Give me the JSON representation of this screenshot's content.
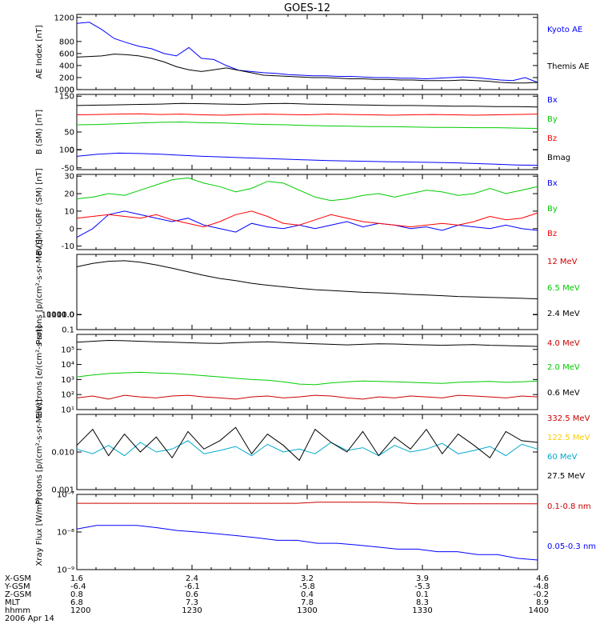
{
  "title": "GOES-12",
  "footer": {
    "rows": [
      {
        "label": "X-GSM",
        "values": [
          "1.6",
          "2.4",
          "3.2",
          "3.9",
          "4.6"
        ]
      },
      {
        "label": "Y-GSM",
        "values": [
          "-6.4",
          "-6.1",
          "-5.8",
          "-5.3",
          "-4.8"
        ]
      },
      {
        "label": "Z-GSM",
        "values": [
          "0.8",
          "0.6",
          "0.4",
          "0.1",
          "-0.2"
        ]
      },
      {
        "label": "MLT",
        "values": [
          "6.8",
          "7.3",
          "7.8",
          "8.3",
          "8.9"
        ]
      },
      {
        "label": "hhmm",
        "values": [
          "1200",
          "1230",
          "1300",
          "1330",
          "1400"
        ]
      }
    ],
    "date": "2006 Apr 14"
  },
  "chart_data": [
    {
      "type": "line",
      "ylabel": "AE Index [nT]",
      "yscale": "linear",
      "ylim": [
        0,
        1250
      ],
      "yticks": [
        "0",
        "200",
        "400",
        "600",
        "800",
        "1000",
        "1200"
      ],
      "x_range": [
        "1200",
        "1400"
      ],
      "series": [
        {
          "name": "Kyoto AE",
          "color": "#0000ff",
          "values": [
            1100,
            1120,
            1000,
            850,
            780,
            720,
            680,
            600,
            560,
            700,
            520,
            500,
            400,
            320,
            300,
            280,
            270,
            250,
            240,
            230,
            230,
            220,
            220,
            210,
            200,
            200,
            190,
            190,
            180,
            190,
            200,
            210,
            200,
            180,
            160,
            150,
            200,
            120
          ]
        },
        {
          "name": "Themis AE",
          "color": "#000000",
          "values": [
            540,
            550,
            560,
            590,
            580,
            560,
            520,
            460,
            380,
            330,
            300,
            330,
            360,
            320,
            280,
            240,
            230,
            220,
            210,
            200,
            200,
            190,
            180,
            180,
            170,
            170,
            160,
            160,
            150,
            150,
            150,
            160,
            150,
            140,
            120,
            110,
            110,
            120
          ]
        }
      ]
    },
    {
      "type": "line",
      "ylabel": "B (SM) [nT]",
      "yscale": "linear",
      "ylim": [
        -55,
        155
      ],
      "yticks": [
        "-50",
        "0",
        "50",
        "100",
        "150"
      ],
      "x_range": [
        "1200",
        "1400"
      ],
      "series": [
        {
          "name": "Bx",
          "color": "#0000ff",
          "values": [
            -18,
            -12,
            -9,
            -10,
            -12,
            -15,
            -18,
            -20,
            -22,
            -24,
            -26,
            -28,
            -30,
            -31,
            -32,
            -33,
            -34,
            -35,
            -36,
            -38,
            -40,
            -42,
            -43
          ]
        },
        {
          "name": "By",
          "color": "#00cc00",
          "values": [
            70,
            71,
            73,
            75,
            77,
            78,
            76,
            75,
            73,
            71,
            70,
            68,
            67,
            66,
            65,
            65,
            64,
            63,
            63,
            62,
            62,
            61,
            60
          ]
        },
        {
          "name": "Bz",
          "color": "#ff0000",
          "values": [
            98,
            99,
            100,
            101,
            99,
            100,
            98,
            97,
            99,
            100,
            99,
            98,
            100,
            99,
            98,
            97,
            98,
            99,
            98,
            97,
            98,
            99,
            100
          ]
        },
        {
          "name": "Bmag",
          "color": "#000000",
          "values": [
            124,
            125,
            126,
            127,
            128,
            130,
            129,
            128,
            127,
            129,
            130,
            128,
            127,
            126,
            125,
            124,
            124,
            123,
            122,
            122,
            121,
            121,
            120
          ]
        }
      ]
    },
    {
      "type": "line",
      "ylabel": "B (SM)-IGRF (SM) [nT]",
      "yscale": "linear",
      "ylim": [
        -12,
        31
      ],
      "yticks": [
        "-10",
        "0",
        "10",
        "20",
        "30"
      ],
      "x_range": [
        "1200",
        "1400"
      ],
      "series": [
        {
          "name": "Bx",
          "color": "#0000ff",
          "values": [
            -5,
            0,
            8,
            10,
            8,
            6,
            4,
            6,
            2,
            0,
            -2,
            3,
            1,
            0,
            2,
            0,
            2,
            4,
            1,
            3,
            2,
            0,
            1,
            -1,
            2,
            1,
            0,
            2,
            0,
            -1
          ]
        },
        {
          "name": "By",
          "color": "#00cc00",
          "values": [
            17,
            18,
            20,
            19,
            22,
            25,
            28,
            29,
            26,
            24,
            21,
            23,
            27,
            26,
            22,
            18,
            16,
            17,
            19,
            20,
            18,
            20,
            22,
            21,
            19,
            20,
            23,
            20,
            22,
            24
          ]
        },
        {
          "name": "Bz",
          "color": "#ff0000",
          "values": [
            6,
            7,
            8,
            7,
            6,
            8,
            5,
            3,
            1,
            4,
            8,
            10,
            7,
            3,
            2,
            5,
            8,
            6,
            4,
            3,
            2,
            1,
            2,
            3,
            2,
            4,
            7,
            5,
            6,
            9
          ]
        }
      ]
    },
    {
      "type": "line",
      "ylabel": "Protons [p/(cm²-s-sr-MeV)]",
      "yscale": "log",
      "ylim": [
        0.1,
        10000
      ],
      "yticks": [
        "0.1",
        "1.0",
        "10.0",
        "100.0",
        "1000.0",
        "10000.0"
      ],
      "x_range": [
        "1200",
        "1400"
      ],
      "series": [
        {
          "name": "12 MeV",
          "color": "#cc0000",
          "values": []
        },
        {
          "name": "6.5 MeV",
          "color": "#00cc00",
          "values": []
        },
        {
          "name": "2.4 MeV",
          "color": "#000000",
          "values": [
            1500,
            2500,
            3500,
            3800,
            3000,
            2000,
            1200,
            700,
            400,
            250,
            180,
            120,
            90,
            70,
            55,
            45,
            40,
            35,
            30,
            28,
            25,
            22,
            20,
            18,
            16,
            15,
            14,
            13,
            12,
            11
          ]
        }
      ]
    },
    {
      "type": "line",
      "ylabel": "Electrons [e/(cm²-s-sr)]",
      "yscale": "log",
      "ylim": [
        10,
        1000000
      ],
      "yticks": [
        "10¹",
        "10²",
        "10³",
        "10⁴",
        "10⁵"
      ],
      "x_range": [
        "1200",
        "1400"
      ],
      "series": [
        {
          "name": "4.0 MeV",
          "color": "#cc0000",
          "values": [
            60,
            80,
            50,
            90,
            70,
            60,
            80,
            90,
            70,
            60,
            50,
            70,
            80,
            60,
            70,
            90,
            80,
            60,
            50,
            70,
            60,
            80,
            70,
            60,
            90,
            80,
            70,
            60,
            80,
            70
          ]
        },
        {
          "name": "2.0 MeV",
          "color": "#00cc00",
          "values": [
            1500,
            2000,
            2500,
            2800,
            3000,
            2700,
            2500,
            2200,
            1800,
            1500,
            1200,
            1000,
            900,
            700,
            500,
            450,
            600,
            700,
            800,
            750,
            700,
            650,
            600,
            550,
            650,
            700,
            750,
            650,
            700,
            800
          ]
        },
        {
          "name": "0.6 MeV",
          "color": "#000000",
          "values": [
            300000,
            350000,
            400000,
            380000,
            350000,
            320000,
            300000,
            280000,
            260000,
            250000,
            280000,
            300000,
            320000,
            290000,
            260000,
            240000,
            220000,
            200000,
            220000,
            240000,
            230000,
            210000,
            200000,
            190000,
            200000,
            210000,
            190000,
            180000,
            170000,
            160000
          ]
        }
      ]
    },
    {
      "type": "line",
      "ylabel": "Protons [p/(cm²-s-sr-MeV)]",
      "yscale": "log",
      "ylim": [
        0.001,
        0.1
      ],
      "yticks": [
        "0.001",
        "0.010"
      ],
      "x_range": [
        "1200",
        "1400"
      ],
      "series": [
        {
          "name": "332.5 MeV",
          "color": "#cc0000",
          "values": []
        },
        {
          "name": "122.5 MeV",
          "color": "#ffcc00",
          "values": []
        },
        {
          "name": "60 MeV",
          "color": "#00aacc",
          "values": [
            0.012,
            0.009,
            0.015,
            0.008,
            0.018,
            0.01,
            0.012,
            0.02,
            0.009,
            0.011,
            0.014,
            0.008,
            0.016,
            0.01,
            0.012,
            0.009,
            0.018,
            0.011,
            0.013,
            0.008,
            0.015,
            0.01,
            0.012,
            0.017,
            0.009,
            0.011,
            0.014,
            0.008,
            0.016,
            0.012
          ]
        },
        {
          "name": "27.5 MeV",
          "color": "#000000",
          "values": [
            0.015,
            0.04,
            0.008,
            0.03,
            0.01,
            0.025,
            0.007,
            0.035,
            0.012,
            0.02,
            0.045,
            0.009,
            0.03,
            0.015,
            0.006,
            0.04,
            0.018,
            0.01,
            0.035,
            0.008,
            0.025,
            0.012,
            0.04,
            0.009,
            0.03,
            0.015,
            0.007,
            0.035,
            0.02,
            0.018
          ]
        }
      ]
    },
    {
      "type": "line",
      "ylabel": "Xray Flux [W/m²]",
      "yscale": "log",
      "ylim": [
        1e-09,
        1e-07
      ],
      "yticks": [
        "10⁻⁹",
        "10⁻⁸",
        "10⁻⁷"
      ],
      "x_range": [
        "1200",
        "1400"
      ],
      "series": [
        {
          "name": "0.1-0.8 nm",
          "color": "#cc0000",
          "values": [
            5.8e-08,
            5.8e-08,
            5.8e-08,
            5.8e-08,
            5.8e-08,
            5.8e-08,
            5.8e-08,
            5.8e-08,
            5.8e-08,
            5.8e-08,
            5.8e-08,
            5.8e-08,
            6.2e-08,
            6.2e-08,
            6.2e-08,
            6.2e-08,
            6e-08,
            5.6e-08,
            5.6e-08,
            5.6e-08,
            5.6e-08,
            5.6e-08,
            5.6e-08,
            5.6e-08
          ]
        },
        {
          "name": "0.05-0.3 nm",
          "color": "#0000ff",
          "values": [
            1.2e-08,
            1.5e-08,
            1.5e-08,
            1.5e-08,
            1.3e-08,
            1.1e-08,
            1e-08,
            9e-09,
            8e-09,
            7e-09,
            6e-09,
            6e-09,
            5e-09,
            5e-09,
            4.5e-09,
            4e-09,
            3.5e-09,
            3.5e-09,
            3e-09,
            3e-09,
            2.5e-09,
            2.5e-09,
            2e-09,
            1.8e-09
          ]
        }
      ]
    }
  ]
}
